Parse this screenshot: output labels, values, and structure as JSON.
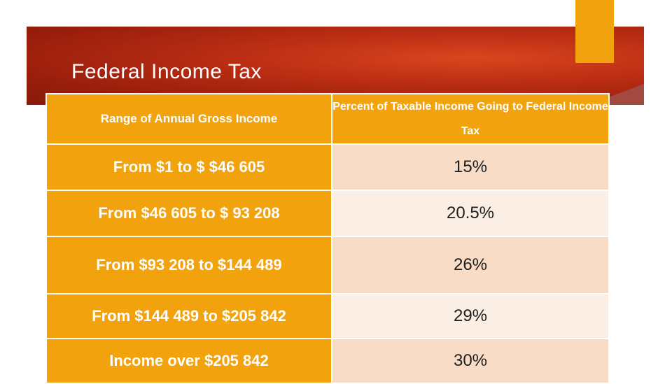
{
  "slide": {
    "title": "Federal Income Tax"
  },
  "table": {
    "headers": [
      "Range of Annual Gross Income",
      "Percent of Taxable Income Going to Federal Income Tax"
    ],
    "rows": [
      {
        "income": "From $1 to $ $46 605",
        "rate": "15%"
      },
      {
        "income": "From $46 605 to $ 93 208",
        "rate": "20.5%"
      },
      {
        "income": "From $93 208 to $144 489",
        "rate": "26%"
      },
      {
        "income": "From $144 489 to $205 842",
        "rate": "29%"
      },
      {
        "income": "Income over $205 842",
        "rate": "30%"
      }
    ]
  },
  "colors": {
    "banner": "#bd2f14",
    "accent_orange": "#f2a20c",
    "rate_band_dark": "#f8dcc5",
    "rate_band_light": "#fbeee4"
  }
}
